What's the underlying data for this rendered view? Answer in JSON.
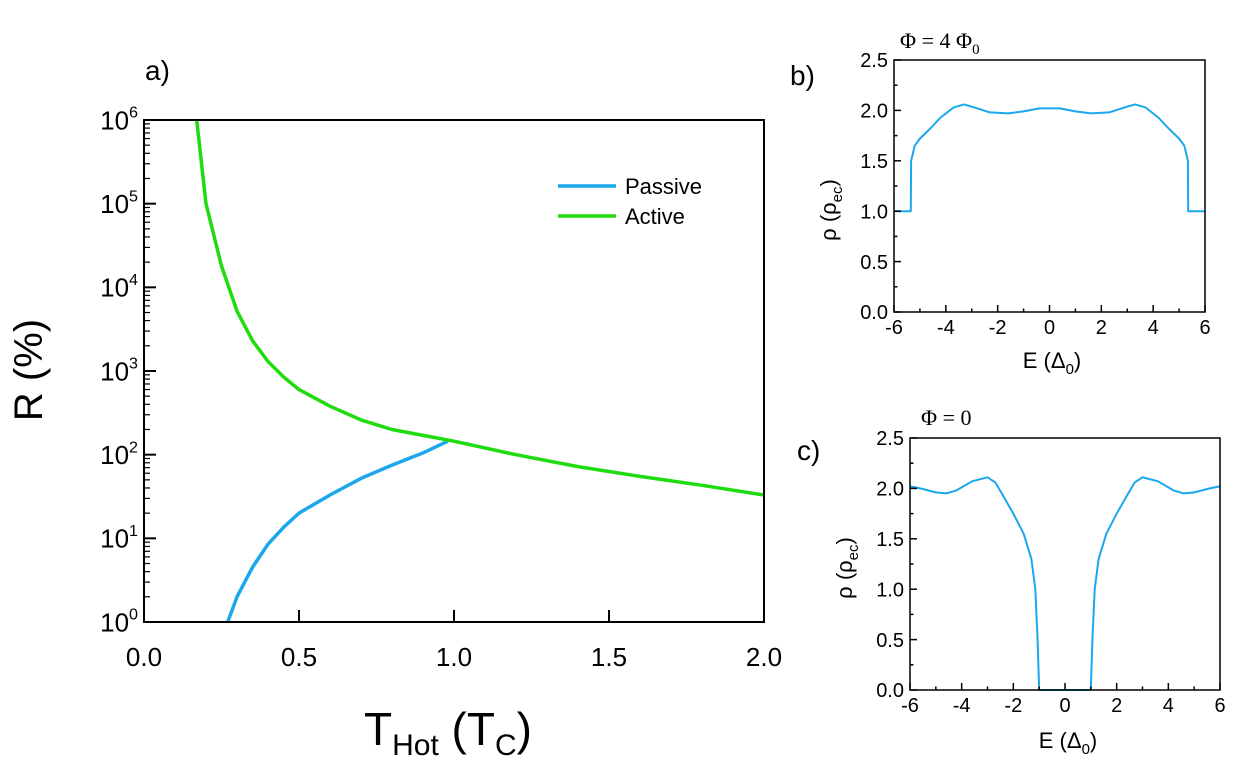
{
  "chart_data": [
    {
      "type": "line",
      "panel": "a)",
      "xlabel": "T",
      "xlabel_sub": "Hot",
      "xunit": "T",
      "xunit_sub": "C",
      "ylabel": "R (%)",
      "xlim": [
        0.0,
        2.0
      ],
      "ylim_log10": [
        0,
        6
      ],
      "yscale": "log",
      "xticks": [
        "0.0",
        "0.5",
        "1.0",
        "1.5",
        "2.0"
      ],
      "yticks": [
        {
          "base": "10",
          "exp": "0"
        },
        {
          "base": "10",
          "exp": "1"
        },
        {
          "base": "10",
          "exp": "2"
        },
        {
          "base": "10",
          "exp": "3"
        },
        {
          "base": "10",
          "exp": "4"
        },
        {
          "base": "10",
          "exp": "5"
        },
        {
          "base": "10",
          "exp": "6"
        }
      ],
      "legend_position": "top-right",
      "series": [
        {
          "name": "Passive",
          "color": "#1aa7ec",
          "x": [
            0.27,
            0.3,
            0.35,
            0.4,
            0.45,
            0.5,
            0.6,
            0.7,
            0.8,
            0.9,
            0.98
          ],
          "y": [
            1.0,
            2.0,
            4.5,
            8.5,
            13.5,
            20,
            33,
            52,
            75,
            105,
            145
          ]
        },
        {
          "name": "Active",
          "color": "#1fdc0f",
          "x": [
            0.17,
            0.2,
            0.25,
            0.3,
            0.35,
            0.4,
            0.45,
            0.5,
            0.6,
            0.7,
            0.8,
            0.9,
            1.0,
            1.2,
            1.4,
            1.6,
            1.8,
            2.0
          ],
          "y": [
            1000000,
            100000,
            18000,
            5200,
            2300,
            1300,
            850,
            600,
            380,
            260,
            200,
            170,
            145,
            100,
            72,
            55,
            43,
            33
          ]
        }
      ]
    },
    {
      "type": "line",
      "panel": "b)",
      "title": "Φ = 4 Φ",
      "title_sub": "0",
      "xlabel": "E (Δ",
      "xlabel_sub": "0",
      "ylabel": "ρ (ρ",
      "ylabel_sub": "ec",
      "xlim": [
        -6,
        6
      ],
      "ylim": [
        0,
        2.5
      ],
      "xticks": [
        "-6",
        "-4",
        "-2",
        "0",
        "2",
        "4",
        "6"
      ],
      "yticks": [
        "0.0",
        "0.5",
        "1.0",
        "1.5",
        "2.0",
        "2.5"
      ],
      "series": [
        {
          "name": "Φ = 4 Φ0",
          "color": "#1aa7ec",
          "x": [
            -6,
            -5.35,
            -5.34,
            -5.2,
            -5.0,
            -4.6,
            -4.2,
            -3.7,
            -3.3,
            -2.9,
            -2.3,
            -1.6,
            -1.0,
            -0.4,
            0,
            0.4,
            1.0,
            1.6,
            2.3,
            2.9,
            3.3,
            3.7,
            4.2,
            4.6,
            5.0,
            5.2,
            5.34,
            5.35,
            6
          ],
          "y": [
            1.0,
            1.0,
            1.5,
            1.65,
            1.72,
            1.82,
            1.93,
            2.03,
            2.06,
            2.03,
            1.98,
            1.97,
            1.99,
            2.02,
            2.02,
            2.02,
            1.99,
            1.97,
            1.98,
            2.03,
            2.06,
            2.03,
            1.93,
            1.82,
            1.72,
            1.65,
            1.5,
            1.0,
            1.0
          ]
        }
      ]
    },
    {
      "type": "line",
      "panel": "c)",
      "title": "Φ = 0",
      "xlabel": "E (Δ",
      "xlabel_sub": "0",
      "ylabel": "ρ (ρ",
      "ylabel_sub": "ec",
      "xlim": [
        -6,
        6
      ],
      "ylim": [
        0,
        2.5
      ],
      "xticks": [
        "-6",
        "-4",
        "-2",
        "0",
        "2",
        "4",
        "6"
      ],
      "yticks": [
        "0.0",
        "0.5",
        "1.0",
        "1.5",
        "2.0",
        "2.5"
      ],
      "series": [
        {
          "name": "Φ = 0",
          "color": "#1aa7ec",
          "x": [
            -6,
            -5.6,
            -5.0,
            -4.6,
            -4.2,
            -3.6,
            -3.0,
            -2.7,
            -2.4,
            -2.0,
            -1.6,
            -1.3,
            -1.15,
            -1.06,
            -1.02,
            -1.0,
            1.0,
            1.02,
            1.06,
            1.15,
            1.3,
            1.6,
            2.0,
            2.4,
            2.7,
            3.0,
            3.6,
            4.2,
            4.6,
            5.0,
            5.6,
            6
          ],
          "y": [
            2.02,
            2.0,
            1.96,
            1.95,
            1.98,
            2.07,
            2.11,
            2.06,
            1.93,
            1.75,
            1.55,
            1.3,
            1.0,
            0.5,
            0.15,
            0.0,
            0.0,
            0.15,
            0.5,
            1.0,
            1.3,
            1.55,
            1.75,
            1.93,
            2.06,
            2.11,
            2.07,
            1.98,
            1.95,
            1.96,
            2.0,
            2.02
          ]
        }
      ]
    }
  ]
}
